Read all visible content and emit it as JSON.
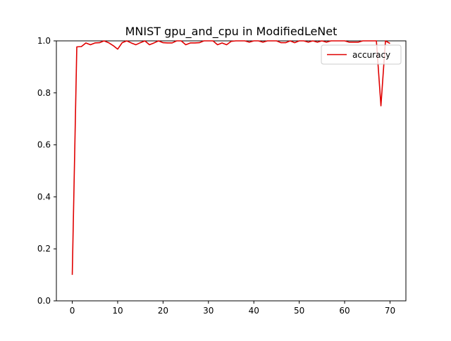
{
  "chart_data": {
    "type": "line",
    "title": "MNIST gpu_and_cpu in ModifiedLeNet",
    "xlabel": "",
    "ylabel": "",
    "xlim": [
      -3.5,
      73.5
    ],
    "ylim": [
      0.0,
      1.0
    ],
    "x_ticks": [
      0,
      10,
      20,
      30,
      40,
      50,
      60,
      70
    ],
    "y_ticks": [
      0.0,
      0.2,
      0.4,
      0.6,
      0.8,
      1.0
    ],
    "x_tick_labels": [
      "0",
      "10",
      "20",
      "30",
      "40",
      "50",
      "60",
      "70"
    ],
    "y_tick_labels": [
      "0.0",
      "0.2",
      "0.4",
      "0.6",
      "0.8",
      "1.0"
    ],
    "grid": false,
    "legend_position": "top-right",
    "series": [
      {
        "name": "accuracy",
        "color": "#e00000",
        "x": [
          0,
          1,
          2,
          3,
          4,
          5,
          6,
          7,
          8,
          9,
          10,
          11,
          12,
          13,
          14,
          15,
          16,
          17,
          18,
          19,
          20,
          21,
          22,
          23,
          24,
          25,
          26,
          27,
          28,
          29,
          30,
          31,
          32,
          33,
          34,
          35,
          36,
          37,
          38,
          39,
          40,
          41,
          42,
          43,
          44,
          45,
          46,
          47,
          48,
          49,
          50,
          51,
          52,
          53,
          54,
          55,
          56,
          57,
          58,
          59,
          60,
          61,
          62,
          63,
          64,
          65,
          66,
          67,
          68,
          69,
          70
        ],
        "y": [
          0.1,
          0.977,
          0.978,
          0.992,
          0.985,
          0.992,
          0.993,
          1.0,
          0.993,
          0.982,
          0.968,
          0.993,
          1.0,
          0.992,
          0.985,
          0.993,
          1.0,
          0.985,
          0.992,
          1.0,
          0.993,
          0.992,
          0.992,
          1.0,
          1.0,
          0.985,
          0.992,
          0.992,
          0.993,
          1.0,
          1.0,
          1.0,
          0.985,
          0.992,
          0.985,
          0.998,
          1.0,
          1.0,
          1.0,
          0.995,
          1.0,
          1.0,
          0.995,
          1.0,
          1.0,
          1.0,
          0.993,
          0.993,
          1.0,
          0.993,
          1.0,
          1.0,
          0.995,
          1.0,
          0.995,
          1.0,
          0.995,
          1.0,
          1.0,
          1.0,
          1.0,
          0.995,
          0.995,
          0.995,
          1.0,
          1.0,
          1.0,
          1.0,
          0.75,
          1.0,
          0.99
        ]
      }
    ]
  }
}
